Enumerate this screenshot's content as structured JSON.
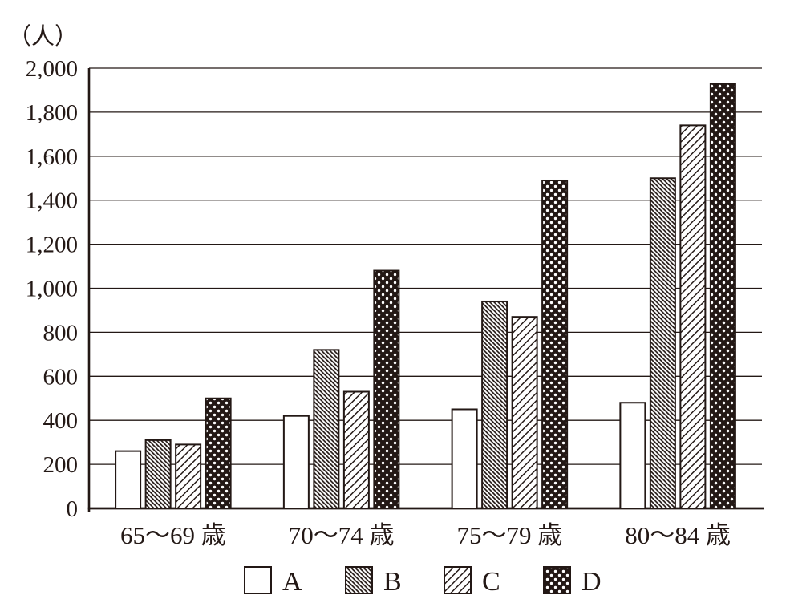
{
  "chart_data": {
    "type": "bar",
    "title": "",
    "ylabel": "（人）",
    "xlabel": "",
    "categories": [
      "65〜69 歳",
      "70〜74 歳",
      "75〜79 歳",
      "80〜84 歳"
    ],
    "series": [
      {
        "name": "A",
        "pattern": "plain-white",
        "values": [
          260,
          420,
          450,
          480
        ]
      },
      {
        "name": "B",
        "pattern": "hatch-backslash",
        "values": [
          310,
          720,
          940,
          1500
        ]
      },
      {
        "name": "C",
        "pattern": "hatch-slash",
        "values": [
          290,
          530,
          870,
          1740
        ]
      },
      {
        "name": "D",
        "pattern": "white-dots-on-black",
        "values": [
          500,
          1080,
          1490,
          1930
        ]
      }
    ],
    "ylim": [
      0,
      2000
    ],
    "ytick_step": 200,
    "ytick_labels": [
      "0",
      "200",
      "400",
      "600",
      "800",
      "1,000",
      "1,200",
      "1,400",
      "1,600",
      "1,800",
      "2,000"
    ],
    "grid": true,
    "legend_position": "bottom",
    "ink_color": "#231815",
    "background_color": "#ffffff"
  }
}
